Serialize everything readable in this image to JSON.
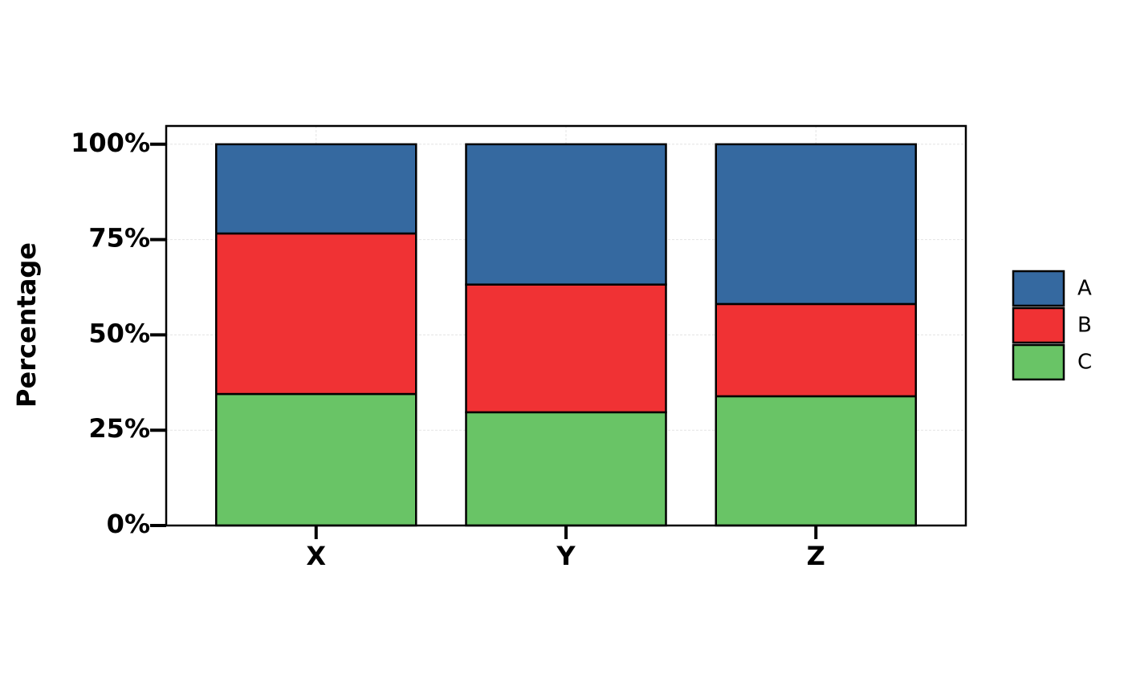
{
  "chart_data": {
    "type": "stacked_bar",
    "y_label": "Percentage",
    "categories": [
      "X",
      "Y",
      "Z"
    ],
    "series": [
      {
        "name": "A",
        "color": "#3569a0",
        "values": [
          23.4,
          36.8,
          41.9
        ]
      },
      {
        "name": "B",
        "color": "#f03234",
        "values": [
          42.1,
          33.5,
          24.2
        ]
      },
      {
        "name": "C",
        "color": "#69c466",
        "values": [
          34.5,
          29.7,
          33.9
        ]
      }
    ],
    "ylim": [
      0,
      104.8
    ],
    "yticks": [
      {
        "value": 0,
        "label": "0%"
      },
      {
        "value": 25,
        "label": "25%"
      },
      {
        "value": 50,
        "label": "50%"
      },
      {
        "value": 75,
        "label": "75%"
      },
      {
        "value": 100,
        "label": "100%"
      }
    ],
    "grid": true,
    "legend": "right"
  }
}
